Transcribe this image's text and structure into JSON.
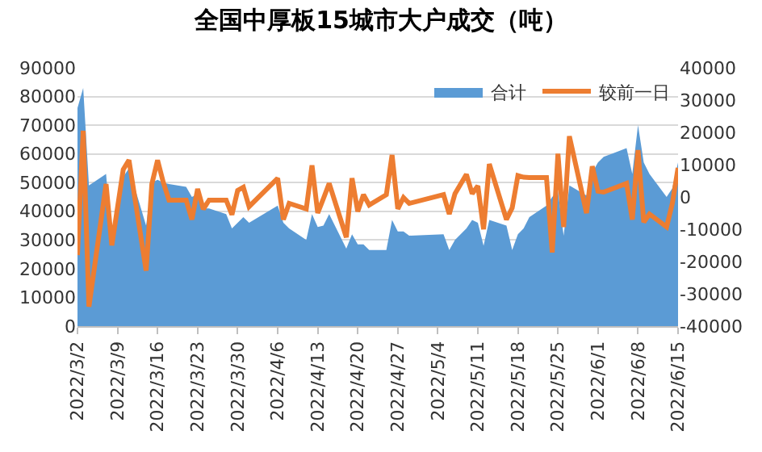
{
  "chart_data": {
    "type": "area",
    "title": "全国中厚板15城市大户成交（吨）",
    "x": [
      "2022-03-02",
      "2022-03-03",
      "2022-03-04",
      "2022-03-07",
      "2022-03-08",
      "2022-03-10",
      "2022-03-11",
      "2022-03-14",
      "2022-03-15",
      "2022-03-16",
      "2022-03-17",
      "2022-03-18",
      "2022-03-21",
      "2022-03-22",
      "2022-03-23",
      "2022-03-24",
      "2022-03-25",
      "2022-03-28",
      "2022-03-29",
      "2022-03-30",
      "2022-03-31",
      "2022-04-01",
      "2022-04-06",
      "2022-04-07",
      "2022-04-08",
      "2022-04-11",
      "2022-04-12",
      "2022-04-13",
      "2022-04-14",
      "2022-04-15",
      "2022-04-18",
      "2022-04-19",
      "2022-04-20",
      "2022-04-21",
      "2022-04-22",
      "2022-04-25",
      "2022-04-26",
      "2022-04-27",
      "2022-04-28",
      "2022-04-29",
      "2022-05-05",
      "2022-05-06",
      "2022-05-07",
      "2022-05-09",
      "2022-05-10",
      "2022-05-11",
      "2022-05-12",
      "2022-05-13",
      "2022-05-16",
      "2022-05-17",
      "2022-05-18",
      "2022-05-19",
      "2022-05-20",
      "2022-05-23",
      "2022-05-24",
      "2022-05-25",
      "2022-05-26",
      "2022-05-27",
      "2022-05-30",
      "2022-05-31",
      "2022-06-01",
      "2022-06-02",
      "2022-06-06",
      "2022-06-07",
      "2022-06-08",
      "2022-06-09",
      "2022-06-10",
      "2022-06-13",
      "2022-06-14",
      "2022-06-15"
    ],
    "series": [
      {
        "name": "合计",
        "color": "#5b9bd5",
        "values": [
          76000,
          83000,
          49000,
          53000,
          29000,
          52000,
          55000,
          35000,
          50000,
          51000,
          50000,
          49500,
          48500,
          45000,
          46000,
          41000,
          41000,
          39000,
          34000,
          36000,
          38000,
          36000,
          42000,
          36000,
          34000,
          30000,
          39000,
          34500,
          35000,
          39000,
          27000,
          32000,
          28500,
          28500,
          26500,
          26500,
          37000,
          33000,
          33000,
          31500,
          32000,
          26500,
          30000,
          34000,
          37000,
          36000,
          28000,
          37000,
          35000,
          26500,
          32000,
          34000,
          38000,
          42000,
          45000,
          47000,
          31500,
          49000,
          45500,
          53500,
          57000,
          59000,
          62000,
          53000,
          70000,
          57000,
          53000,
          45000,
          48000,
          57000
        ]
      },
      {
        "name": "较前一日",
        "type": "line",
        "axis": "y2",
        "color": "#ed7d31",
        "values": [
          -18000,
          20500,
          -34000,
          4000,
          -15000,
          8500,
          11400,
          -22800,
          4000,
          11400,
          4500,
          -1000,
          -1000,
          -7000,
          2500,
          -3800,
          -1000,
          -1000,
          -5500,
          2000,
          3000,
          -3000,
          5800,
          -7000,
          -2000,
          -3700,
          9800,
          -5000,
          -500,
          4200,
          -12500,
          5800,
          -4500,
          700,
          -2500,
          700,
          13000,
          -3700,
          -200,
          -2000,
          700,
          -5300,
          1000,
          7000,
          1000,
          3400,
          -10000,
          10200,
          -7000,
          -3400,
          6600,
          6100,
          6000,
          6000,
          -17200,
          13400,
          -9300,
          18800,
          -5000,
          9500,
          1800,
          1500,
          4200,
          -7000,
          14500,
          -7800,
          -5300,
          -9300,
          -2000,
          9000
        ]
      }
    ],
    "xlim": [
      "2022-03-02",
      "2022-06-15"
    ],
    "xticks": [
      {
        "value": "2022-03-02",
        "label": "2022/3/2"
      },
      {
        "value": "2022-03-09",
        "label": "2022/3/9"
      },
      {
        "value": "2022-03-16",
        "label": "2022/3/16"
      },
      {
        "value": "2022-03-23",
        "label": "2022/3/23"
      },
      {
        "value": "2022-03-30",
        "label": "2022/3/30"
      },
      {
        "value": "2022-04-06",
        "label": "2022/4/6"
      },
      {
        "value": "2022-04-13",
        "label": "2022/4/13"
      },
      {
        "value": "2022-04-20",
        "label": "2022/4/20"
      },
      {
        "value": "2022-04-27",
        "label": "2022/4/27"
      },
      {
        "value": "2022-05-04",
        "label": "2022/5/4"
      },
      {
        "value": "2022-05-11",
        "label": "2022/5/11"
      },
      {
        "value": "2022-05-18",
        "label": "2022/5/18"
      },
      {
        "value": "2022-05-25",
        "label": "2022/5/25"
      },
      {
        "value": "2022-06-01",
        "label": "2022/6/1"
      },
      {
        "value": "2022-06-08",
        "label": "2022/6/8"
      },
      {
        "value": "2022-06-15",
        "label": "2022/6/15"
      }
    ],
    "ylim": [
      0,
      90000
    ],
    "yticks": [
      0,
      10000,
      20000,
      30000,
      40000,
      50000,
      60000,
      70000,
      80000,
      90000
    ],
    "y2lim": [
      -40000,
      40000
    ],
    "y2ticks": [
      -40000,
      -30000,
      -20000,
      -10000,
      0,
      10000,
      20000,
      30000,
      40000
    ],
    "grid": "y",
    "legend": "top right",
    "marker": "none",
    "line_style": "solid"
  }
}
